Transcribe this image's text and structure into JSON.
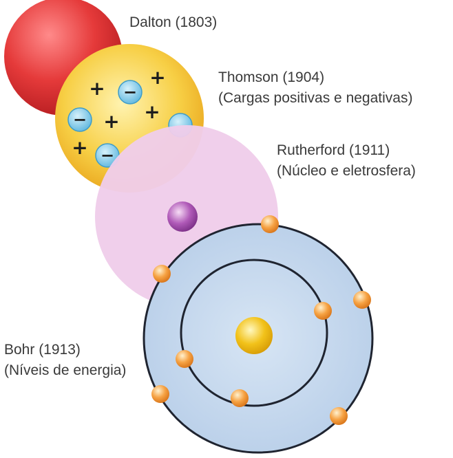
{
  "models": [
    {
      "id": "dalton",
      "name": "Dalton (1803)",
      "description": ""
    },
    {
      "id": "thomson",
      "name": "Thomson (1904)",
      "description": "(Cargas positivas e negativas)"
    },
    {
      "id": "rutherford",
      "name": "Rutherford (1911)",
      "description": "(Núcleo e eletrosfera)"
    },
    {
      "id": "bohr",
      "name": "Bohr (1913)",
      "description": "(Níveis de energia)"
    }
  ],
  "symbols": {
    "positive": "+",
    "negative": "−"
  },
  "colors": {
    "dalton": "#e53a3a",
    "thomson": "#f5c23a",
    "rutherford_cloud": "#efcdea",
    "rutherford_nucleus": "#b05ab8",
    "bohr_disc": "#c6d8ee",
    "bohr_orbit": "#1f2430",
    "bohr_nucleus": "#f2c21a",
    "electron": "#f39a3b",
    "negative_charge": "#7cc6e6",
    "text": "#3a3a3a"
  }
}
